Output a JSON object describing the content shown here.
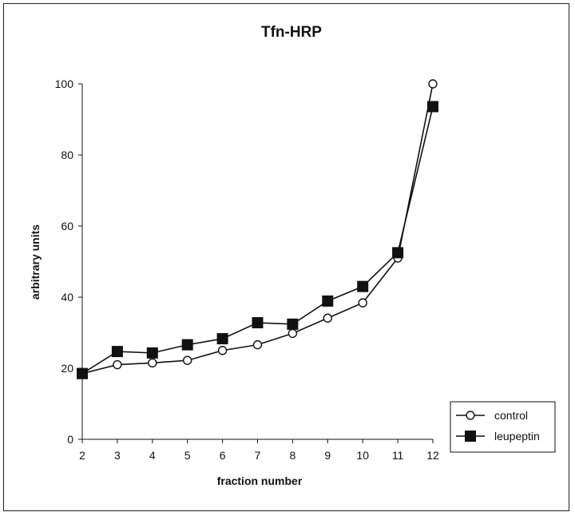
{
  "chart_data": {
    "type": "line",
    "title": "Tfn-HRP",
    "xlabel": "fraction number",
    "ylabel": "arbitrary units",
    "x": [
      2,
      3,
      4,
      5,
      6,
      7,
      8,
      9,
      10,
      11,
      12
    ],
    "xlim": [
      2,
      12
    ],
    "ylim": [
      0,
      100
    ],
    "yticks": [
      0,
      20,
      40,
      60,
      80,
      100
    ],
    "grid": false,
    "legend_position": "bottom-right",
    "series": [
      {
        "name": "control",
        "marker": "open-circle",
        "values": [
          18.5,
          21,
          21.5,
          22.2,
          25,
          26.6,
          29.8,
          34.1,
          38.4,
          51,
          100
        ]
      },
      {
        "name": "leupeptin",
        "marker": "filled-square",
        "values": [
          18.5,
          24.7,
          24.3,
          26.6,
          28.3,
          32.8,
          32.4,
          38.9,
          43,
          52.5,
          93.6
        ]
      }
    ],
    "colors": {
      "line": "#111111",
      "marker_fill_open": "#ffffff",
      "marker_fill_solid": "#111111"
    }
  }
}
